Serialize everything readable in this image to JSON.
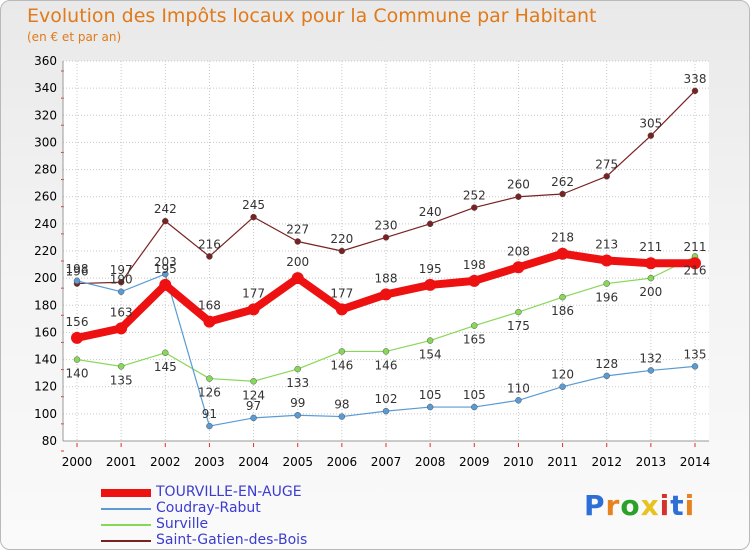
{
  "header": {
    "title": "Evolution des Impôts locaux pour la Commune par Habitant",
    "subtitle": "(en € et par an)"
  },
  "logo": {
    "text": "Proxiti",
    "colors": [
      "#2d6fd6",
      "#e8821e",
      "#2aa12a",
      "#e8c21e",
      "#d6322d",
      "#2d6fd6",
      "#e8821e"
    ]
  },
  "colors": {
    "axis_label": "#000000",
    "grid": "#c8c8c8",
    "tick_marker": "#e0302a",
    "legend_text": "#3c3ccf"
  },
  "chart_data": {
    "type": "line",
    "title": "Evolution des Impôts locaux pour la Commune par Habitant",
    "subtitle": "(en € et par an)",
    "xlabel": "",
    "ylabel": "",
    "x": [
      "2000",
      "2001",
      "2002",
      "2003",
      "2004",
      "2005",
      "2006",
      "2007",
      "2008",
      "2009",
      "2010",
      "2011",
      "2012",
      "2013",
      "2014"
    ],
    "ylim": [
      80,
      360
    ],
    "yticks": [
      80,
      100,
      120,
      140,
      160,
      180,
      200,
      220,
      240,
      260,
      280,
      300,
      320,
      340,
      360
    ],
    "grid": true,
    "legend_position": "bottom-left",
    "series": [
      {
        "name": "TOURVILLE-EN-AUGE",
        "color": "#ee1111",
        "width": 8,
        "labels": "above",
        "values": [
          156,
          163,
          195,
          168,
          177,
          200,
          177,
          188,
          195,
          198,
          208,
          218,
          213,
          211,
          211
        ]
      },
      {
        "name": "Coudray-Rabut",
        "color": "#5a9bd4",
        "width": 1.2,
        "labels": "above",
        "values": [
          198,
          190,
          203,
          91,
          97,
          99,
          98,
          102,
          105,
          105,
          110,
          120,
          128,
          132,
          135
        ]
      },
      {
        "name": "Surville",
        "color": "#88d858",
        "width": 1.2,
        "labels": "below",
        "values": [
          140,
          135,
          145,
          126,
          124,
          133,
          146,
          146,
          154,
          165,
          175,
          186,
          196,
          200,
          216
        ]
      },
      {
        "name": "Saint-Gatien-des-Bois",
        "color": "#7a2222",
        "width": 1.2,
        "labels": "above",
        "values": [
          196,
          197,
          242,
          216,
          245,
          227,
          220,
          230,
          240,
          252,
          260,
          262,
          275,
          305,
          338
        ]
      }
    ]
  }
}
